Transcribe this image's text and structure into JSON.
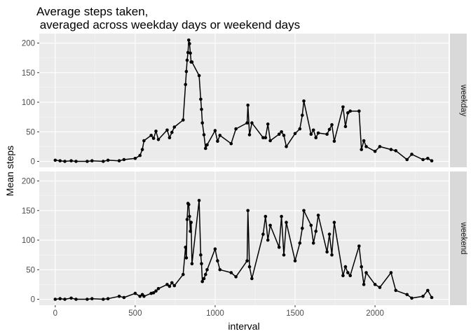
{
  "chart_data": {
    "type": "line",
    "title": "Average steps taken,",
    "subtitle": " averaged across weekday days or weekend days",
    "xlabel": "interval",
    "ylabel": "Mean steps",
    "xlim": [
      -100,
      2460
    ],
    "ylim": [
      -10,
      216
    ],
    "x_ticks": [
      0,
      500,
      1000,
      1500,
      2000
    ],
    "y_ticks": [
      0,
      50,
      100,
      150,
      200
    ],
    "grid": true,
    "facet": "rows",
    "colors": {
      "panel_bg": "#ebebeb",
      "grid_major": "#ffffff",
      "strip_bg": "#d9d9d9",
      "line": "#000000"
    },
    "panels": [
      {
        "strip": "weekday",
        "x": [
          0,
          30,
          60,
          100,
          130,
          200,
          230,
          300,
          330,
          400,
          430,
          500,
          530,
          545,
          555,
          600,
          615,
          630,
          645,
          700,
          715,
          730,
          745,
          800,
          815,
          820,
          825,
          830,
          835,
          840,
          845,
          850,
          855,
          900,
          910,
          915,
          920,
          930,
          940,
          950,
          1000,
          1015,
          1030,
          1100,
          1130,
          1200,
          1205,
          1215,
          1230,
          1300,
          1315,
          1330,
          1345,
          1400,
          1415,
          1430,
          1445,
          1500,
          1530,
          1545,
          1555,
          1600,
          1615,
          1630,
          1645,
          1700,
          1715,
          1730,
          1745,
          1800,
          1815,
          1830,
          1845,
          1900,
          1915,
          1930,
          1945,
          2000,
          2030,
          2100,
          2130,
          2200,
          2230,
          2300,
          2330,
          2355
        ],
        "y": [
          2,
          1,
          0,
          1,
          0,
          0,
          1,
          0,
          2,
          1,
          3,
          5,
          10,
          20,
          35,
          44,
          39,
          51,
          37,
          53,
          40,
          49,
          58,
          70,
          130,
          152,
          171,
          184,
          205,
          199,
          183,
          168,
          168,
          145,
          105,
          88,
          65,
          45,
          22,
          28,
          52,
          34,
          44,
          30,
          55,
          65,
          95,
          45,
          65,
          40,
          40,
          63,
          35,
          46,
          50,
          44,
          25,
          47,
          55,
          78,
          102,
          46,
          53,
          40,
          48,
          46,
          54,
          62,
          34,
          92,
          59,
          82,
          85,
          85,
          20,
          35,
          25,
          17,
          25,
          20,
          18,
          3,
          12,
          3,
          5,
          1
        ]
      },
      {
        "strip": "weekend",
        "x": [
          0,
          30,
          60,
          100,
          130,
          200,
          230,
          300,
          330,
          400,
          430,
          500,
          530,
          545,
          555,
          600,
          615,
          630,
          645,
          700,
          715,
          730,
          745,
          800,
          815,
          820,
          825,
          830,
          835,
          840,
          845,
          850,
          855,
          900,
          910,
          915,
          920,
          930,
          940,
          950,
          1000,
          1015,
          1030,
          1100,
          1130,
          1200,
          1205,
          1215,
          1230,
          1300,
          1315,
          1330,
          1345,
          1400,
          1415,
          1430,
          1445,
          1500,
          1530,
          1545,
          1555,
          1600,
          1615,
          1630,
          1645,
          1700,
          1715,
          1730,
          1745,
          1800,
          1815,
          1830,
          1845,
          1900,
          1915,
          1930,
          1945,
          2000,
          2030,
          2100,
          2130,
          2200,
          2230,
          2300,
          2330,
          2355
        ],
        "y": [
          0,
          1,
          0,
          2,
          0,
          0,
          1,
          0,
          1,
          5,
          3,
          10,
          5,
          8,
          5,
          10,
          11,
          14,
          18,
          25,
          22,
          28,
          23,
          42,
          88,
          70,
          135,
          162,
          160,
          140,
          115,
          130,
          60,
          167,
          75,
          60,
          30,
          35,
          42,
          50,
          85,
          65,
          50,
          45,
          38,
          65,
          150,
          55,
          35,
          110,
          140,
          100,
          125,
          88,
          140,
          75,
          130,
          65,
          95,
          120,
          150,
          125,
          95,
          115,
          142,
          80,
          110,
          75,
          130,
          40,
          55,
          45,
          40,
          90,
          55,
          25,
          45,
          25,
          20,
          45,
          15,
          8,
          2,
          5,
          15,
          3
        ]
      }
    ]
  }
}
